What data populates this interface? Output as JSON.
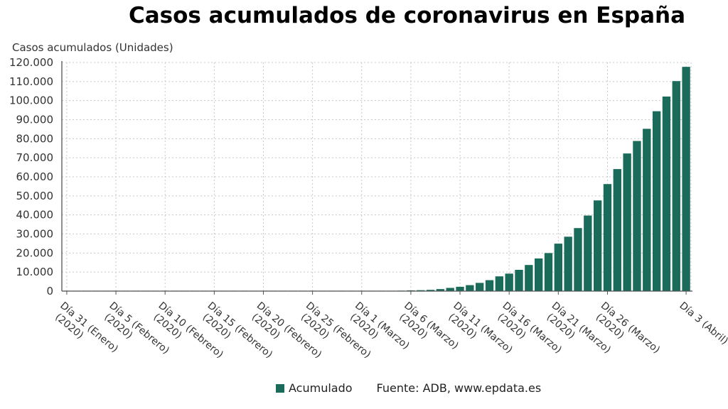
{
  "chart_data": {
    "type": "bar",
    "title": "Casos acumulados de coronavirus en España",
    "ylabel": "Casos acumulados (Unidades)",
    "xlabel": "",
    "ylim": [
      0,
      120000
    ],
    "y_ticks": [
      0,
      10000,
      20000,
      30000,
      40000,
      50000,
      60000,
      70000,
      80000,
      90000,
      100000,
      110000,
      120000
    ],
    "y_tick_labels": [
      "0",
      "10.000",
      "20.000",
      "30.000",
      "40.000",
      "50.000",
      "60.000",
      "70.000",
      "80.000",
      "90.000",
      "100.000",
      "110.000",
      "120.000"
    ],
    "x_tick_labels": [
      [
        "Día 31 (Enero)",
        "(2020)"
      ],
      [
        "Día 5 (Febrero)",
        "(2020)"
      ],
      [
        "Día 10 (Febrero)",
        "(2020)"
      ],
      [
        "Día 15 (Febrero)",
        "(2020)"
      ],
      [
        "Día 20 (Febrero)",
        "(2020)"
      ],
      [
        "Día 25 (Febrero)",
        "(2020)"
      ],
      [
        "Día 1 (Marzo)",
        "(2020)"
      ],
      [
        "Día 6 (Marzo)",
        "(2020)"
      ],
      [
        "Día 11 (Marzo)",
        "(2020)"
      ],
      [
        "Día 16 (Marzo)",
        "(2020)"
      ],
      [
        "Día 21 (Marzo)",
        "(2020)"
      ],
      [
        "Día 26 (Marzo)",
        "(2020)"
      ],
      [
        "Día 3 (Abril)"
      ]
    ],
    "x_tick_days": [
      0,
      5,
      10,
      15,
      20,
      25,
      30,
      35,
      40,
      45,
      50,
      55,
      63
    ],
    "grid": true,
    "legend_position": "bottom",
    "series": [
      {
        "name": "Acumulado",
        "color": "#1a6b5a",
        "start_date": "2020-01-31",
        "values": [
          1,
          1,
          1,
          1,
          1,
          1,
          1,
          1,
          1,
          1,
          2,
          2,
          2,
          2,
          2,
          2,
          2,
          2,
          2,
          2,
          2,
          2,
          2,
          2,
          3,
          12,
          25,
          32,
          45,
          66,
          84,
          120,
          165,
          222,
          259,
          400,
          500,
          673,
          1073,
          1695,
          2277,
          3146,
          4334,
          5753,
          7753,
          9191,
          11178,
          13716,
          17147,
          19980,
          24926,
          28572,
          33089,
          39673,
          47610,
          56188,
          64059,
          72248,
          78797,
          85195,
          94417,
          102136,
          110238,
          117710
        ]
      }
    ]
  },
  "legend": {
    "label": "Acumulado",
    "color": "#1a6b5a"
  },
  "source": "Fuente: ADB, www.epdata.es"
}
